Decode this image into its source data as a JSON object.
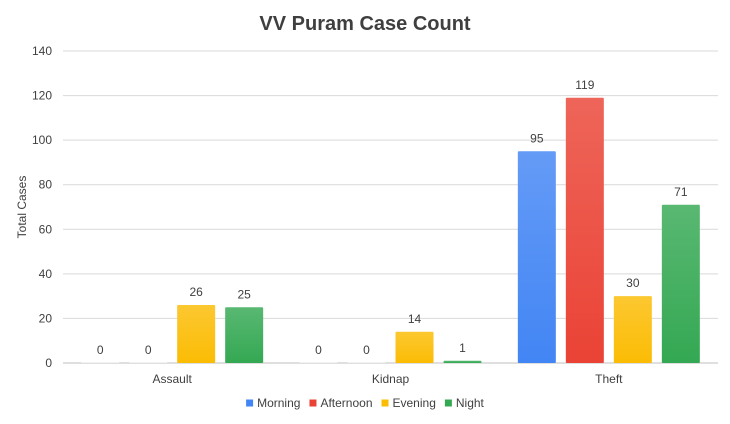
{
  "chart_data": {
    "type": "bar",
    "title": "VV Puram Case Count",
    "xlabel": "",
    "ylabel": "Total Cases",
    "ylim": [
      0,
      140
    ],
    "yticks": [
      0,
      20,
      40,
      60,
      80,
      100,
      120,
      140
    ],
    "categories": [
      "Assault",
      "Kidnap",
      "Theft"
    ],
    "series": [
      {
        "name": "Morning",
        "values": [
          0,
          0,
          95
        ],
        "color": "#4285f4"
      },
      {
        "name": "Afternoon",
        "values": [
          0,
          0,
          119
        ],
        "color": "#ea4335"
      },
      {
        "name": "Evening",
        "values": [
          26,
          14,
          30
        ],
        "color": "#fbbc04"
      },
      {
        "name": "Night",
        "values": [
          25,
          1,
          71
        ],
        "color": "#34a853"
      }
    ],
    "grid": true,
    "legend_position": "bottom"
  }
}
